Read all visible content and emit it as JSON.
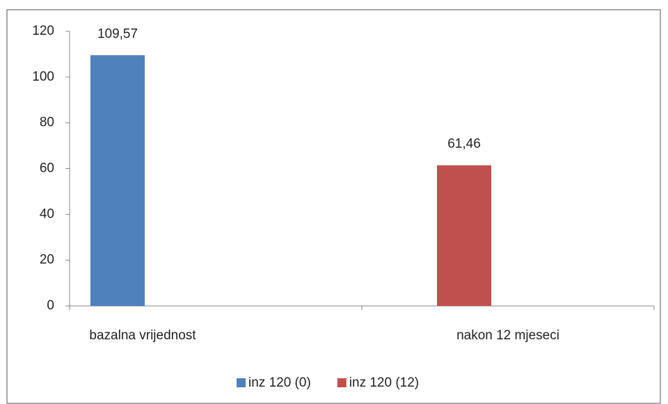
{
  "chart_data": {
    "type": "bar",
    "categories": [
      "bazalna vrijednost",
      "nakon 12 mjeseci"
    ],
    "series": [
      {
        "name": "inz 120 (0)",
        "color": "#4f81bd",
        "values": [
          109.57,
          null
        ],
        "value_labels": [
          "109,57",
          null
        ]
      },
      {
        "name": "inz 120 (12)",
        "color": "#c0504d",
        "values": [
          null,
          61.46
        ],
        "value_labels": [
          null,
          "61,46"
        ]
      }
    ],
    "ylim": [
      0,
      120
    ],
    "yticks": [
      0,
      20,
      40,
      60,
      80,
      100,
      120
    ],
    "grid": false,
    "legend": "bottom"
  }
}
